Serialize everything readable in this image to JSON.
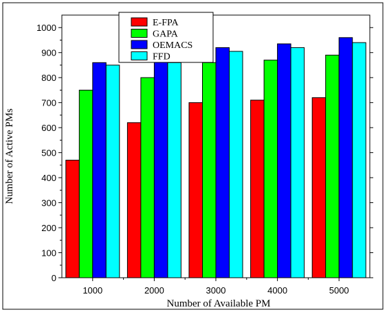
{
  "chart_data": {
    "type": "bar",
    "xlabel": "Number of  Available PM",
    "ylabel": "Number of Active PMs",
    "categories": [
      "1000",
      "2000",
      "3000",
      "4000",
      "5000"
    ],
    "ylim": [
      0,
      1050
    ],
    "yticks": [
      "0",
      "100",
      "200",
      "300",
      "400",
      "500",
      "600",
      "700",
      "800",
      "900",
      "1000"
    ],
    "legend_position": "top-left",
    "grid": false,
    "series": [
      {
        "name": "E-FPA",
        "color": "#ff0000",
        "values": [
          470,
          620,
          700,
          710,
          720
        ]
      },
      {
        "name": "GAPA",
        "color": "#00ff00",
        "values": [
          750,
          800,
          860,
          870,
          890
        ]
      },
      {
        "name": "OEMACS",
        "color": "#0000ff",
        "values": [
          860,
          865,
          920,
          935,
          960
        ]
      },
      {
        "name": "FFD",
        "color": "#00ffff",
        "values": [
          850,
          860,
          905,
          920,
          940
        ]
      }
    ]
  }
}
